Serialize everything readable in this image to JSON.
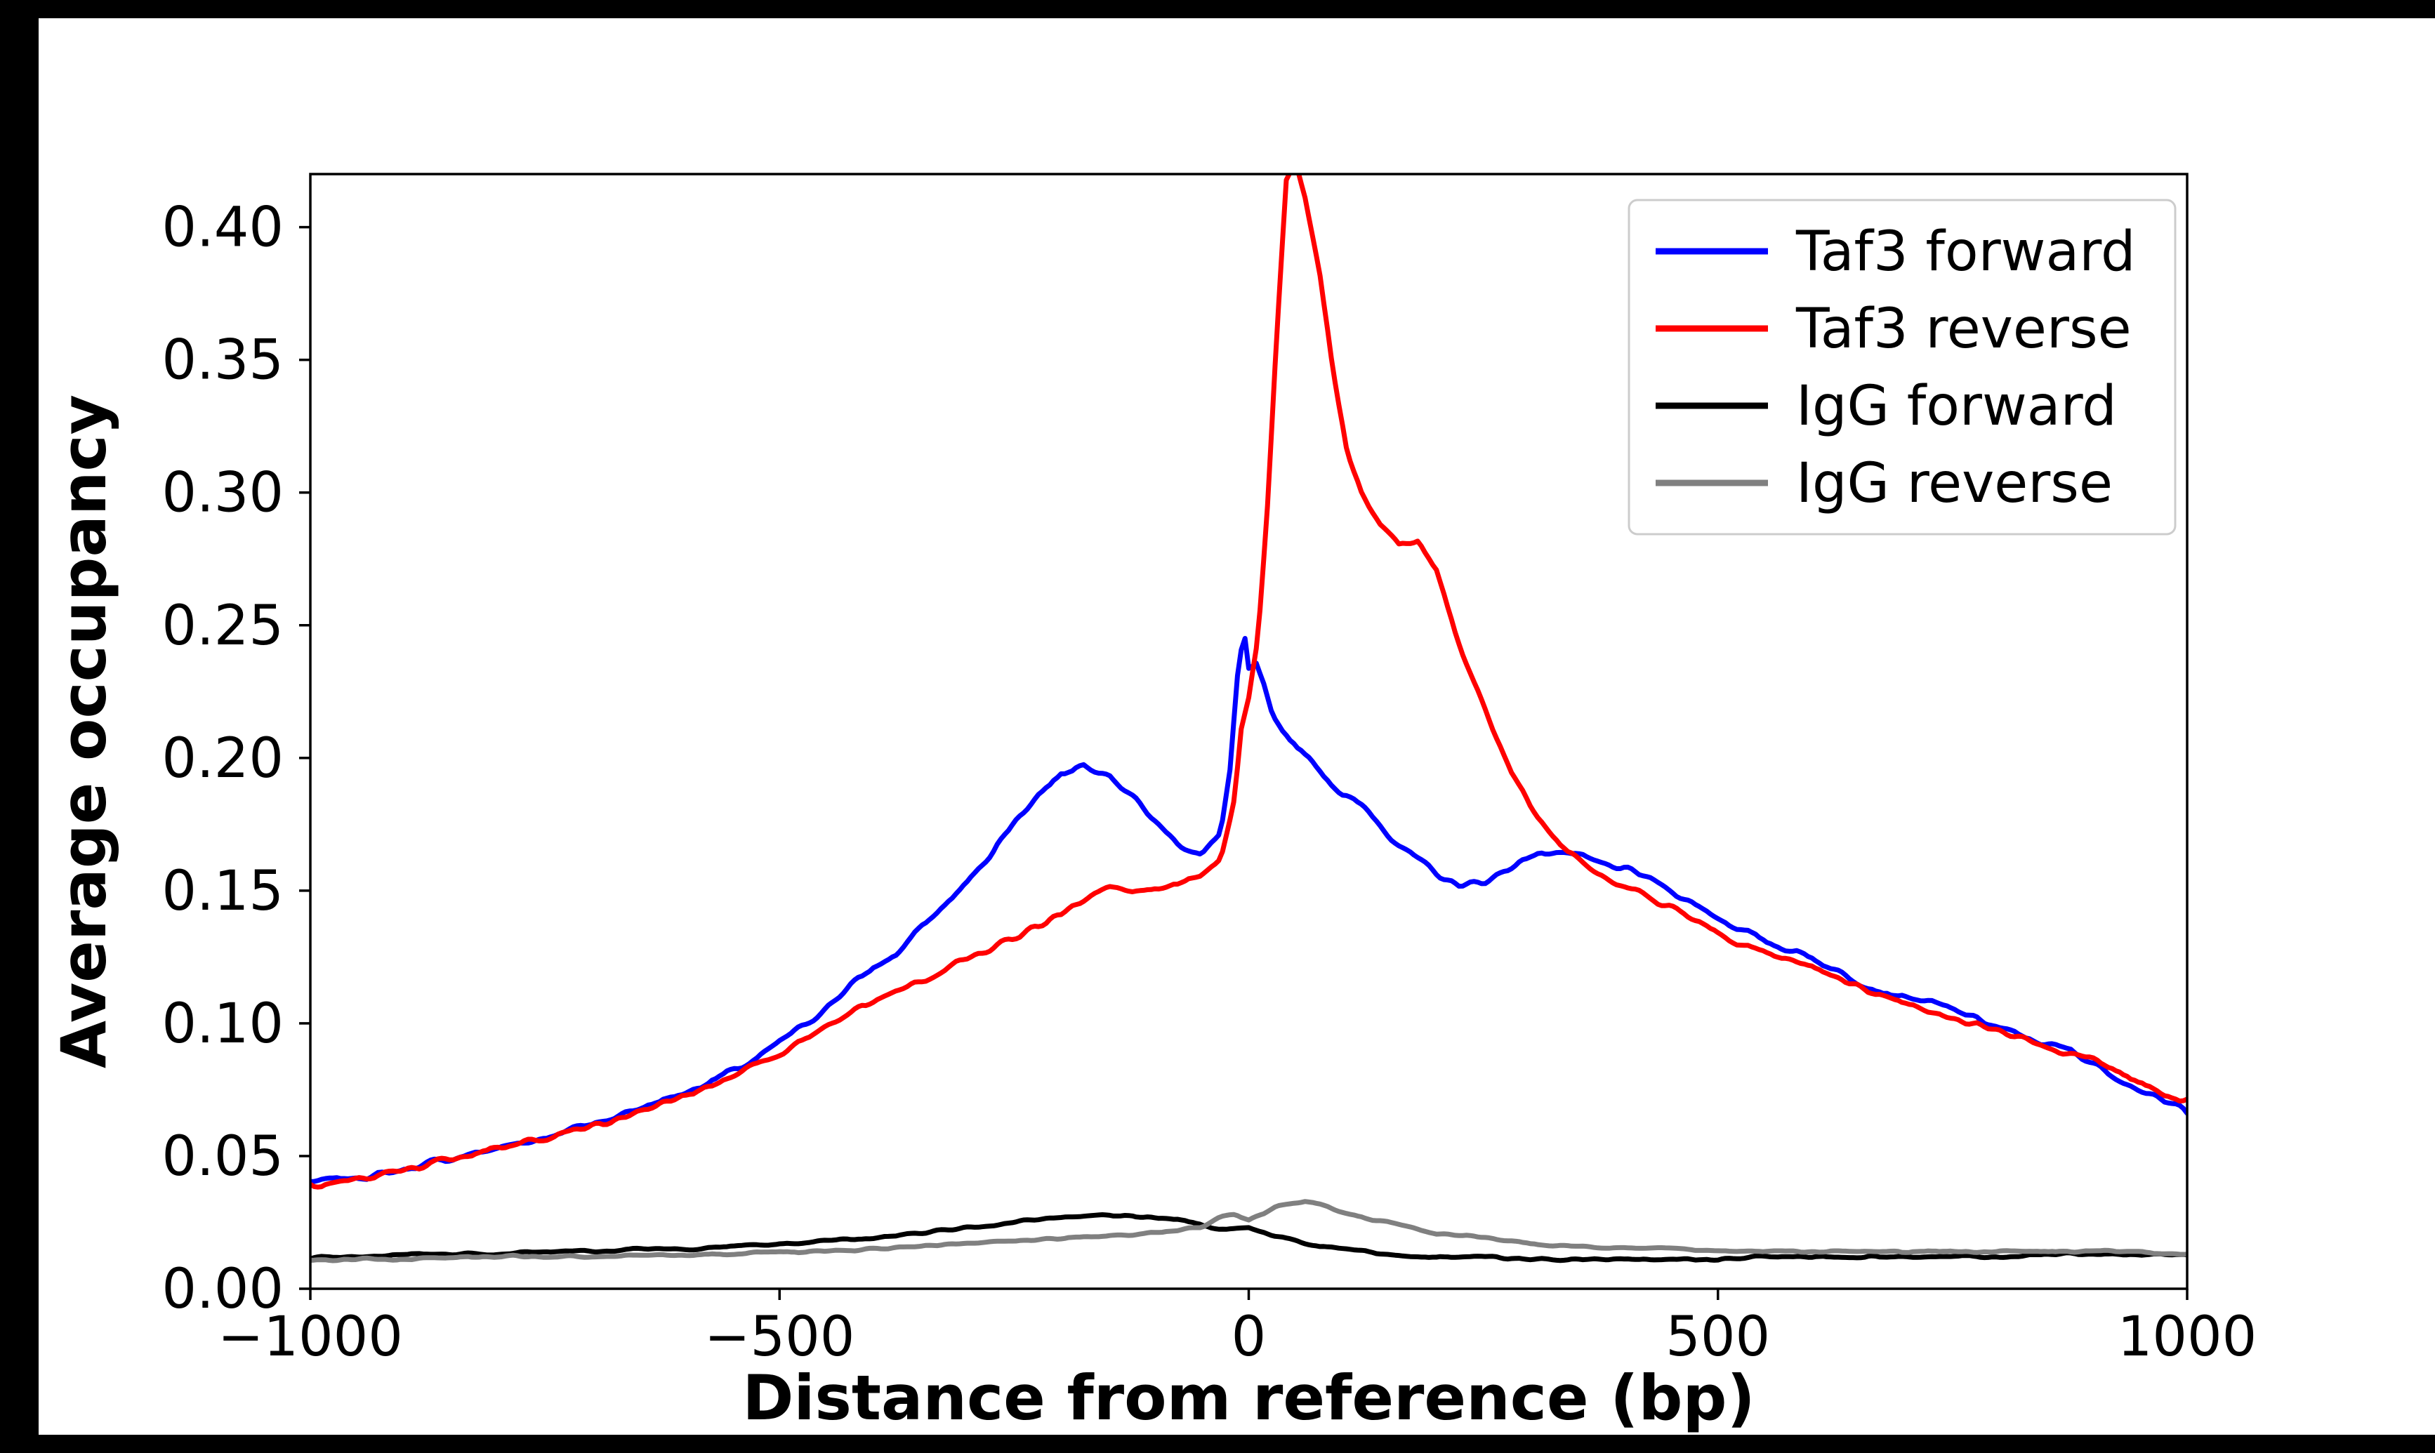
{
  "figure": {
    "background": "#ffffff",
    "frame_color": "#000000"
  },
  "chart_data": {
    "type": "line",
    "title": "",
    "xlabel": "Distance from reference (bp)",
    "ylabel": "Average occupancy",
    "xlim": [
      -1000,
      1000
    ],
    "ylim": [
      0,
      0.42
    ],
    "grid": false,
    "legend_position": "upper right",
    "xticks": [
      -1000,
      -500,
      0,
      500,
      1000
    ],
    "xtick_labels": [
      "−1000",
      "−500",
      "0",
      "500",
      "1000"
    ],
    "yticks": [
      0.0,
      0.05,
      0.1,
      0.15,
      0.2,
      0.25,
      0.3,
      0.35,
      0.4
    ],
    "ytick_labels": [
      "0.00",
      "0.05",
      "0.10",
      "0.15",
      "0.20",
      "0.25",
      "0.30",
      "0.35",
      "0.40"
    ],
    "series": [
      {
        "name": "Taf3 forward",
        "color": "#0000ff",
        "x": [
          -1000,
          -975,
          -950,
          -925,
          -900,
          -875,
          -850,
          -825,
          -800,
          -775,
          -750,
          -725,
          -700,
          -675,
          -650,
          -625,
          -600,
          -575,
          -550,
          -525,
          -500,
          -475,
          -450,
          -425,
          -400,
          -375,
          -350,
          -325,
          -300,
          -275,
          -250,
          -225,
          -200,
          -175,
          -150,
          -125,
          -100,
          -75,
          -50,
          -30,
          -20,
          -12,
          -5,
          0,
          8,
          15,
          25,
          50,
          75,
          100,
          125,
          150,
          175,
          200,
          225,
          250,
          275,
          300,
          325,
          350,
          375,
          400,
          425,
          450,
          475,
          500,
          525,
          550,
          575,
          600,
          625,
          650,
          675,
          700,
          725,
          750,
          775,
          800,
          825,
          850,
          875,
          900,
          925,
          950,
          975,
          1000
        ],
        "y": [
          0.04,
          0.041,
          0.042,
          0.043,
          0.045,
          0.047,
          0.049,
          0.051,
          0.053,
          0.055,
          0.057,
          0.06,
          0.062,
          0.065,
          0.068,
          0.071,
          0.074,
          0.078,
          0.082,
          0.086,
          0.093,
          0.099,
          0.106,
          0.114,
          0.121,
          0.126,
          0.136,
          0.144,
          0.153,
          0.164,
          0.176,
          0.186,
          0.194,
          0.198,
          0.194,
          0.186,
          0.176,
          0.168,
          0.163,
          0.172,
          0.195,
          0.23,
          0.247,
          0.233,
          0.235,
          0.228,
          0.215,
          0.205,
          0.196,
          0.186,
          0.181,
          0.171,
          0.163,
          0.156,
          0.152,
          0.153,
          0.158,
          0.163,
          0.165,
          0.163,
          0.16,
          0.158,
          0.155,
          0.15,
          0.145,
          0.14,
          0.135,
          0.131,
          0.128,
          0.125,
          0.12,
          0.116,
          0.112,
          0.11,
          0.108,
          0.105,
          0.102,
          0.098,
          0.095,
          0.092,
          0.09,
          0.085,
          0.08,
          0.075,
          0.07,
          0.068
        ]
      },
      {
        "name": "Taf3 reverse",
        "color": "#ff0000",
        "x": [
          -1000,
          -975,
          -950,
          -925,
          -900,
          -875,
          -850,
          -825,
          -800,
          -775,
          -750,
          -725,
          -700,
          -675,
          -650,
          -625,
          -600,
          -575,
          -550,
          -525,
          -500,
          -475,
          -450,
          -425,
          -400,
          -375,
          -350,
          -325,
          -300,
          -275,
          -250,
          -225,
          -200,
          -175,
          -150,
          -125,
          -100,
          -75,
          -50,
          -30,
          -15,
          -8,
          0,
          10,
          20,
          30,
          40,
          50,
          60,
          75,
          90,
          105,
          120,
          140,
          160,
          180,
          200,
          220,
          240,
          260,
          280,
          300,
          320,
          340,
          360,
          380,
          400,
          425,
          450,
          475,
          500,
          525,
          550,
          575,
          600,
          625,
          650,
          675,
          700,
          725,
          750,
          775,
          800,
          825,
          850,
          875,
          900,
          925,
          950,
          975,
          1000
        ],
        "y": [
          0.038,
          0.039,
          0.041,
          0.043,
          0.045,
          0.047,
          0.049,
          0.051,
          0.053,
          0.055,
          0.057,
          0.059,
          0.061,
          0.064,
          0.067,
          0.07,
          0.073,
          0.076,
          0.08,
          0.084,
          0.089,
          0.094,
          0.099,
          0.104,
          0.109,
          0.112,
          0.116,
          0.12,
          0.124,
          0.128,
          0.132,
          0.136,
          0.141,
          0.147,
          0.151,
          0.149,
          0.151,
          0.153,
          0.156,
          0.162,
          0.185,
          0.21,
          0.222,
          0.245,
          0.295,
          0.36,
          0.418,
          0.425,
          0.412,
          0.385,
          0.345,
          0.315,
          0.3,
          0.288,
          0.28,
          0.282,
          0.27,
          0.248,
          0.228,
          0.21,
          0.195,
          0.182,
          0.172,
          0.165,
          0.16,
          0.155,
          0.152,
          0.147,
          0.143,
          0.139,
          0.134,
          0.13,
          0.127,
          0.124,
          0.121,
          0.117,
          0.114,
          0.111,
          0.108,
          0.105,
          0.102,
          0.1,
          0.097,
          0.094,
          0.091,
          0.088,
          0.086,
          0.082,
          0.078,
          0.073,
          0.07
        ]
      },
      {
        "name": "IgG forward",
        "color": "#000000",
        "x": [
          -1000,
          -950,
          -900,
          -850,
          -800,
          -750,
          -700,
          -650,
          -600,
          -550,
          -500,
          -450,
          -400,
          -350,
          -300,
          -250,
          -200,
          -150,
          -100,
          -75,
          -50,
          -25,
          0,
          25,
          50,
          75,
          100,
          150,
          200,
          250,
          300,
          350,
          400,
          450,
          500,
          550,
          600,
          650,
          700,
          750,
          800,
          850,
          900,
          950,
          1000
        ],
        "y": [
          0.012,
          0.012,
          0.013,
          0.013,
          0.013,
          0.014,
          0.014,
          0.015,
          0.015,
          0.016,
          0.017,
          0.018,
          0.019,
          0.021,
          0.023,
          0.025,
          0.027,
          0.028,
          0.027,
          0.026,
          0.024,
          0.022,
          0.023,
          0.02,
          0.018,
          0.016,
          0.015,
          0.013,
          0.012,
          0.012,
          0.011,
          0.011,
          0.011,
          0.011,
          0.011,
          0.012,
          0.012,
          0.012,
          0.012,
          0.012,
          0.012,
          0.013,
          0.013,
          0.013,
          0.013
        ]
      },
      {
        "name": "IgG reverse",
        "color": "#808080",
        "x": [
          -1000,
          -950,
          -900,
          -850,
          -800,
          -750,
          -700,
          -650,
          -600,
          -550,
          -500,
          -450,
          -400,
          -350,
          -300,
          -250,
          -200,
          -150,
          -100,
          -75,
          -50,
          -30,
          -15,
          0,
          15,
          30,
          45,
          60,
          75,
          90,
          110,
          130,
          150,
          175,
          200,
          250,
          300,
          350,
          400,
          450,
          500,
          550,
          600,
          650,
          700,
          750,
          800,
          850,
          900,
          950,
          1000
        ],
        "y": [
          0.011,
          0.011,
          0.011,
          0.012,
          0.012,
          0.012,
          0.012,
          0.013,
          0.013,
          0.013,
          0.014,
          0.014,
          0.015,
          0.016,
          0.017,
          0.018,
          0.019,
          0.02,
          0.021,
          0.022,
          0.023,
          0.027,
          0.028,
          0.026,
          0.028,
          0.031,
          0.032,
          0.033,
          0.032,
          0.03,
          0.028,
          0.026,
          0.025,
          0.023,
          0.021,
          0.019,
          0.017,
          0.016,
          0.015,
          0.015,
          0.014,
          0.014,
          0.014,
          0.014,
          0.014,
          0.014,
          0.014,
          0.014,
          0.014,
          0.014,
          0.013
        ]
      }
    ]
  }
}
